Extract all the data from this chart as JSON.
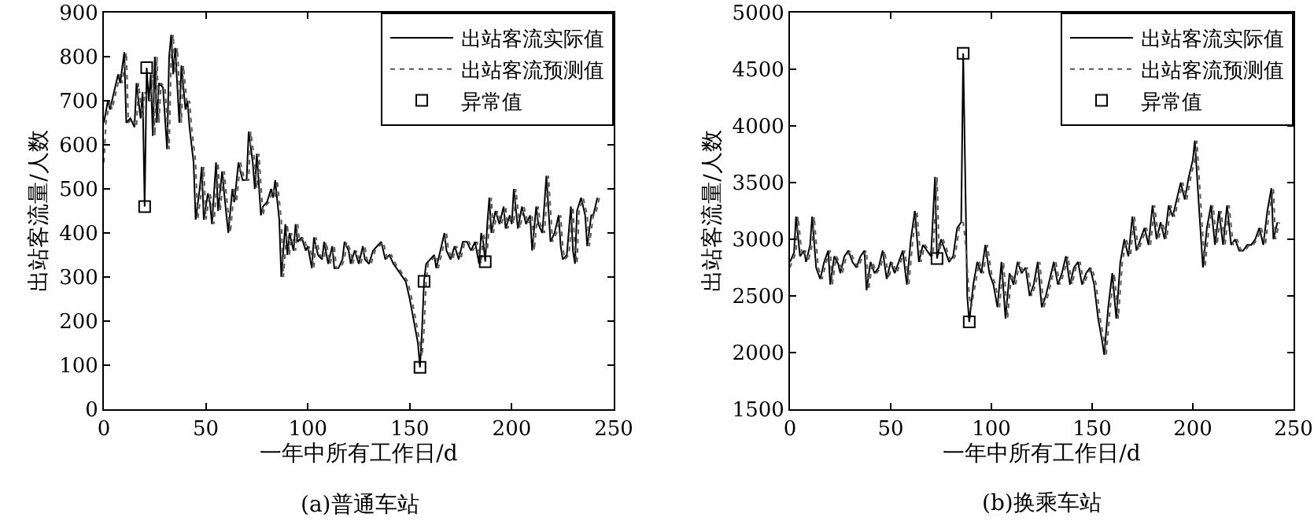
{
  "chart_data": [
    {
      "type": "line",
      "title": "(a)普通车站",
      "xlabel": "一年中所有工作日/d",
      "ylabel": "出站客流量/人数",
      "xlim": [
        0,
        250
      ],
      "xticks": [
        0,
        50,
        100,
        150,
        200,
        250
      ],
      "ylim": [
        0,
        900
      ],
      "yticks": [
        0,
        100,
        200,
        300,
        400,
        500,
        600,
        700,
        800,
        900
      ],
      "grid": false,
      "legend": "top right",
      "series": [
        {
          "name": "出站客流实际值",
          "color": "#000000",
          "line_style": "solid",
          "marker": "none",
          "x": [
            0,
            2,
            3,
            5,
            7,
            8,
            10,
            11,
            13,
            15,
            16,
            18,
            19,
            20,
            21,
            22,
            23,
            24,
            25,
            26,
            27,
            29,
            31,
            32,
            33,
            34,
            35,
            37,
            38,
            40,
            41,
            42,
            44,
            45,
            47,
            48,
            49,
            51,
            52,
            53,
            55,
            56,
            58,
            59,
            61,
            63,
            64,
            66,
            68,
            70,
            71,
            73,
            74,
            75,
            77,
            78,
            80,
            82,
            83,
            84,
            86,
            87,
            89,
            90,
            91,
            93,
            94,
            95,
            97,
            99,
            100,
            102,
            103,
            105,
            107,
            108,
            110,
            112,
            113,
            115,
            117,
            118,
            120,
            121,
            123,
            125,
            127,
            128,
            130,
            132,
            134,
            136,
            138,
            140,
            142,
            145,
            148,
            150,
            152,
            154,
            155,
            156,
            157,
            158,
            160,
            162,
            163,
            165,
            167,
            168,
            170,
            172,
            174,
            176,
            178,
            180,
            182,
            184,
            185,
            186,
            187,
            188,
            189,
            190,
            192,
            194,
            196,
            197,
            199,
            200,
            201,
            203,
            205,
            207,
            209,
            210,
            212,
            213,
            215,
            217,
            219,
            221,
            223,
            224,
            225,
            227,
            229,
            230,
            231,
            232,
            234,
            236,
            237,
            239,
            240,
            242
          ],
          "values": [
            650,
            700,
            680,
            720,
            760,
            740,
            810,
            650,
            660,
            640,
            740,
            660,
            720,
            460,
            775,
            700,
            760,
            620,
            800,
            650,
            740,
            730,
            590,
            800,
            850,
            760,
            820,
            650,
            780,
            680,
            700,
            640,
            560,
            430,
            500,
            550,
            430,
            490,
            470,
            420,
            560,
            450,
            540,
            490,
            400,
            500,
            470,
            560,
            520,
            520,
            630,
            560,
            500,
            580,
            440,
            460,
            470,
            500,
            480,
            520,
            430,
            300,
            420,
            350,
            400,
            360,
            420,
            380,
            390,
            360,
            370,
            320,
            390,
            350,
            340,
            380,
            330,
            370,
            320,
            320,
            340,
            380,
            360,
            330,
            360,
            330,
            370,
            340,
            330,
            360,
            370,
            380,
            340,
            350,
            330,
            310,
            290,
            250,
            200,
            150,
            95,
            180,
            290,
            330,
            340,
            350,
            320,
            360,
            400,
            360,
            340,
            370,
            340,
            380,
            380,
            360,
            380,
            330,
            400,
            380,
            335,
            420,
            480,
            400,
            450,
            420,
            460,
            410,
            440,
            420,
            500,
            410,
            460,
            420,
            440,
            360,
            460,
            420,
            400,
            530,
            380,
            400,
            440,
            370,
            340,
            350,
            460,
            360,
            330,
            450,
            480,
            440,
            370,
            440,
            440,
            480
          ]
        },
        {
          "name": "出站客流预测值",
          "color": "#555555",
          "line_style": "dotted",
          "marker": "none",
          "x": [
            0,
            1,
            3,
            4,
            6,
            8,
            9,
            11,
            12,
            14,
            16,
            17,
            19,
            20,
            22,
            23,
            24,
            25,
            26,
            27,
            28,
            30,
            32,
            33,
            34,
            35,
            36,
            38,
            39,
            41,
            42,
            43,
            45,
            46,
            48,
            49,
            50,
            52,
            53,
            54,
            56,
            57,
            59,
            60,
            62,
            64,
            65,
            67,
            69,
            71,
            72,
            74,
            75,
            76,
            78,
            79,
            81,
            83,
            84,
            85,
            87,
            88,
            90,
            91,
            92,
            94,
            95,
            96,
            98,
            100,
            101,
            103,
            104,
            106,
            108,
            109,
            111,
            113,
            114,
            116,
            118,
            119,
            121,
            122,
            124,
            126,
            128,
            129,
            131,
            133,
            135,
            137,
            139,
            141,
            143,
            146,
            149,
            151,
            153,
            155,
            156,
            157,
            158,
            159,
            161,
            163,
            164,
            166,
            168,
            169,
            171,
            173,
            175,
            177,
            179,
            181,
            183,
            185,
            186,
            187,
            188,
            189,
            190,
            191,
            193,
            195,
            197,
            198,
            200,
            201,
            202,
            204,
            206,
            208,
            210,
            211,
            213,
            214,
            216,
            218,
            220,
            222,
            224,
            225,
            226,
            228,
            230,
            231,
            232,
            233,
            235,
            237,
            238,
            240,
            241,
            243
          ],
          "values": [
            560,
            650,
            700,
            680,
            720,
            760,
            740,
            810,
            650,
            660,
            640,
            740,
            660,
            720,
            700,
            700,
            760,
            620,
            800,
            650,
            740,
            730,
            590,
            800,
            850,
            760,
            820,
            650,
            780,
            680,
            700,
            640,
            560,
            430,
            500,
            550,
            430,
            490,
            470,
            420,
            560,
            450,
            540,
            490,
            400,
            500,
            470,
            560,
            520,
            520,
            630,
            560,
            500,
            580,
            440,
            460,
            470,
            500,
            480,
            520,
            430,
            300,
            420,
            350,
            400,
            360,
            420,
            380,
            390,
            360,
            370,
            320,
            390,
            350,
            340,
            380,
            330,
            370,
            320,
            320,
            340,
            380,
            360,
            330,
            360,
            330,
            370,
            340,
            330,
            360,
            370,
            380,
            340,
            350,
            330,
            310,
            290,
            250,
            200,
            150,
            120,
            180,
            290,
            330,
            340,
            350,
            320,
            360,
            400,
            360,
            340,
            370,
            340,
            380,
            380,
            360,
            380,
            330,
            400,
            380,
            360,
            420,
            480,
            400,
            450,
            420,
            460,
            410,
            440,
            420,
            500,
            410,
            460,
            420,
            440,
            360,
            460,
            420,
            400,
            530,
            380,
            400,
            440,
            370,
            340,
            350,
            460,
            360,
            330,
            450,
            480,
            440,
            370,
            440,
            440,
            480
          ]
        },
        {
          "name": "异常值",
          "type": "scatter",
          "color": "#000000",
          "marker": "square",
          "x": [
            20,
            21,
            155,
            157,
            187
          ],
          "values": [
            460,
            775,
            95,
            290,
            335
          ]
        }
      ]
    },
    {
      "type": "line",
      "title": "(b)换乘车站",
      "xlabel": "一年中所有工作日/d",
      "ylabel": "出站客流量/人数",
      "xlim": [
        0,
        250
      ],
      "xticks": [
        0,
        50,
        100,
        150,
        200,
        250
      ],
      "ylim": [
        1500,
        5000
      ],
      "yticks": [
        1500,
        2000,
        2500,
        3000,
        3500,
        4000,
        4500,
        5000
      ],
      "grid": false,
      "legend": "top right",
      "series": [
        {
          "name": "出站客流实际值",
          "color": "#000000",
          "line_style": "solid",
          "marker": "none",
          "x": [
            0,
            2,
            3,
            5,
            7,
            8,
            10,
            11,
            13,
            15,
            17,
            19,
            20,
            22,
            24,
            25,
            27,
            29,
            31,
            33,
            35,
            37,
            38,
            40,
            42,
            44,
            46,
            48,
            50,
            52,
            54,
            56,
            58,
            60,
            62,
            64,
            66,
            68,
            70,
            72,
            73,
            75,
            77,
            79,
            81,
            83,
            85,
            86,
            88,
            89,
            91,
            93,
            95,
            97,
            99,
            101,
            103,
            105,
            107,
            109,
            111,
            113,
            115,
            117,
            119,
            121,
            123,
            125,
            127,
            129,
            131,
            133,
            135,
            137,
            139,
            141,
            143,
            145,
            147,
            149,
            151,
            153,
            155,
            156,
            158,
            160,
            162,
            164,
            166,
            168,
            170,
            172,
            174,
            176,
            178,
            180,
            182,
            184,
            186,
            188,
            190,
            192,
            194,
            196,
            198,
            200,
            201,
            203,
            205,
            207,
            209,
            211,
            213,
            215,
            217,
            219,
            221,
            223,
            225,
            227,
            229,
            231,
            233,
            235,
            237,
            239,
            240,
            242
          ],
          "values": [
            2800,
            2880,
            3200,
            2850,
            2900,
            2800,
            2950,
            3200,
            2750,
            2650,
            2800,
            2900,
            2600,
            2850,
            2780,
            2700,
            2850,
            2900,
            2800,
            2750,
            2850,
            2900,
            2550,
            2800,
            2700,
            2750,
            2900,
            2650,
            2800,
            2700,
            2800,
            2900,
            2600,
            3000,
            3250,
            2800,
            2950,
            2900,
            2850,
            3550,
            2830,
            3000,
            2900,
            2800,
            2850,
            3100,
            3150,
            4640,
            2500,
            2270,
            2600,
            2800,
            2700,
            2950,
            2700,
            2600,
            2400,
            2800,
            2300,
            2700,
            2600,
            2800,
            2700,
            2750,
            2500,
            2600,
            2800,
            2400,
            2500,
            2650,
            2800,
            2600,
            2700,
            2850,
            2600,
            2750,
            2800,
            2600,
            2700,
            2750,
            2600,
            2300,
            2100,
            1980,
            2400,
            2700,
            2300,
            2800,
            3000,
            2850,
            3200,
            2900,
            3000,
            3100,
            2950,
            3300,
            3000,
            3150,
            3000,
            3300,
            3200,
            3350,
            3500,
            3350,
            3550,
            3700,
            3870,
            3300,
            2750,
            3100,
            3300,
            2950,
            3250,
            2950,
            3300,
            2950,
            3000,
            2900,
            2900,
            2950,
            2950,
            3000,
            3100,
            2950,
            3250,
            3450,
            3000,
            3150
          ]
        },
        {
          "name": "出站客流预测值",
          "color": "#555555",
          "line_style": "dotted",
          "marker": "none",
          "x": [
            0,
            1,
            3,
            4,
            6,
            8,
            9,
            11,
            12,
            14,
            16,
            18,
            20,
            21,
            23,
            25,
            26,
            28,
            30,
            32,
            34,
            36,
            38,
            39,
            41,
            43,
            45,
            47,
            49,
            51,
            53,
            55,
            57,
            59,
            61,
            63,
            65,
            67,
            69,
            71,
            73,
            74,
            76,
            78,
            80,
            82,
            84,
            86,
            87,
            89,
            90,
            92,
            94,
            96,
            98,
            100,
            102,
            104,
            106,
            108,
            110,
            112,
            114,
            116,
            118,
            120,
            122,
            124,
            126,
            128,
            130,
            132,
            134,
            136,
            138,
            140,
            142,
            144,
            146,
            148,
            150,
            152,
            154,
            156,
            157,
            159,
            161,
            163,
            165,
            167,
            169,
            171,
            173,
            175,
            177,
            179,
            181,
            183,
            185,
            187,
            189,
            191,
            193,
            195,
            197,
            199,
            201,
            202,
            204,
            206,
            208,
            210,
            212,
            214,
            216,
            218,
            220,
            222,
            224,
            226,
            228,
            230,
            232,
            234,
            236,
            238,
            240,
            241,
            243
          ],
          "values": [
            2750,
            2800,
            2880,
            3200,
            2850,
            2900,
            2800,
            2950,
            3200,
            2750,
            2650,
            2800,
            2900,
            2600,
            2850,
            2780,
            2700,
            2850,
            2900,
            2800,
            2750,
            2850,
            2900,
            2550,
            2800,
            2700,
            2750,
            2900,
            2650,
            2800,
            2700,
            2800,
            2900,
            2600,
            3000,
            3250,
            2800,
            2950,
            2900,
            2850,
            3550,
            2900,
            3000,
            2900,
            2800,
            2850,
            3100,
            3150,
            3000,
            2500,
            2400,
            2600,
            2800,
            2700,
            2950,
            2700,
            2600,
            2400,
            2800,
            2300,
            2700,
            2600,
            2800,
            2700,
            2750,
            2500,
            2600,
            2800,
            2400,
            2500,
            2650,
            2800,
            2600,
            2700,
            2850,
            2600,
            2750,
            2800,
            2600,
            2700,
            2750,
            2600,
            2300,
            2100,
            1980,
            2400,
            2700,
            2300,
            2800,
            3000,
            2850,
            3200,
            2900,
            3000,
            3100,
            2950,
            3300,
            3000,
            3150,
            3000,
            3300,
            3200,
            3350,
            3500,
            3350,
            3550,
            3700,
            3870,
            3300,
            2750,
            3100,
            3300,
            2950,
            3250,
            2950,
            3300,
            2950,
            3000,
            2900,
            2900,
            2950,
            2950,
            3000,
            3100,
            2950,
            3250,
            3450,
            3000,
            3150
          ]
        },
        {
          "name": "异常值",
          "type": "scatter",
          "color": "#000000",
          "marker": "square",
          "x": [
            73,
            86,
            89
          ],
          "values": [
            2830,
            4640,
            2270
          ]
        }
      ]
    }
  ]
}
